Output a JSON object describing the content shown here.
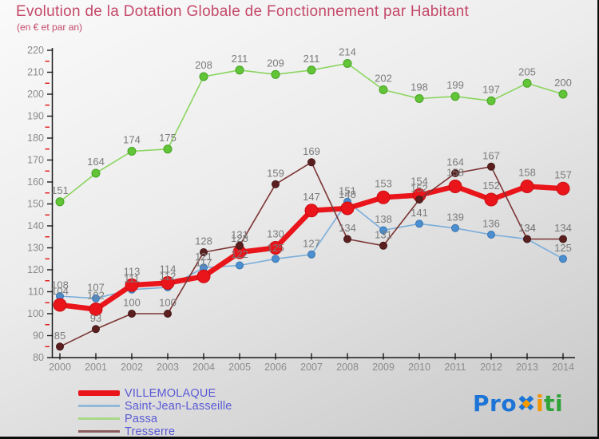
{
  "chart_data": {
    "type": "line",
    "title": "Evolution de la Dotation Globale de Fonctionnement par Habitant",
    "subtitle": "(en € et par an)",
    "x": [
      "2000",
      "2001",
      "2002",
      "2003",
      "2004",
      "2005",
      "2006",
      "2007",
      "2008",
      "2009",
      "2010",
      "2011",
      "2012",
      "2013",
      "2014"
    ],
    "ylim": [
      80,
      220
    ],
    "y_tick_step": 10,
    "y_minor_tick_step": 5,
    "grid": false,
    "legend_position": "bottom-left",
    "axis_color": "#1a1a1a",
    "tick_label_color": "#8c8c8c",
    "minor_tick_color": "#e00000",
    "value_label_color": "#7b7b7b",
    "draw_order": [
      2,
      1,
      0,
      3
    ],
    "series": [
      {
        "name": "VILLEMOLAQUE",
        "values": [
          104,
          102,
          113,
          114,
          117,
          128,
          130,
          147,
          148,
          153,
          154,
          158,
          152,
          158,
          157
        ],
        "color": "#e9151b",
        "line_width": 6.5,
        "marker_radius": 8,
        "marker_fill": "#e9151b",
        "marker_stroke": "#c90e13"
      },
      {
        "name": "Saint-Jean-Lasseille",
        "values": [
          108,
          107,
          111,
          112,
          121,
          122,
          125,
          127,
          151,
          138,
          141,
          139,
          136,
          134,
          125
        ],
        "color": "#7aadda",
        "line_width": 1.6,
        "marker_radius": 4.5,
        "marker_fill": "#4b8fd0",
        "marker_stroke": "#3a74ae"
      },
      {
        "name": "Passa",
        "values": [
          151,
          164,
          174,
          175,
          208,
          211,
          209,
          211,
          214,
          202,
          198,
          199,
          197,
          205,
          200
        ],
        "color": "#8ad55e",
        "line_width": 1.6,
        "marker_radius": 5,
        "marker_fill": "#62c437",
        "marker_stroke": "#47a323"
      },
      {
        "name": "Tresserre",
        "values": [
          85,
          93,
          100,
          100,
          128,
          131,
          159,
          169,
          134,
          131,
          152,
          164,
          167,
          134,
          134
        ],
        "color": "#7c3434",
        "line_width": 1.6,
        "marker_radius": 4.5,
        "marker_fill": "#5c1f1f",
        "marker_stroke": "#451717"
      }
    ]
  },
  "legend": {
    "text_color": "#5a5ad6",
    "items": [
      {
        "label": "VILLEMOLAQUE",
        "swatch_color": "#e9151b"
      },
      {
        "label": "Saint-Jean-Lasseille",
        "swatch_color": "#93b9d9"
      },
      {
        "label": "Passa",
        "swatch_color": "#a9d889"
      },
      {
        "label": "Tresserre",
        "swatch_color": "#8a5c5c"
      }
    ]
  },
  "logo": {
    "text": "Proxiti",
    "segments": [
      {
        "text": "Pro",
        "color": "#1b74d6"
      },
      {
        "text": "✖",
        "color": "#1b74d6",
        "accent": "#f59b00"
      },
      {
        "text": "i",
        "color": "#f29400"
      },
      {
        "text": "ti",
        "color": "#2fa339"
      }
    ]
  }
}
